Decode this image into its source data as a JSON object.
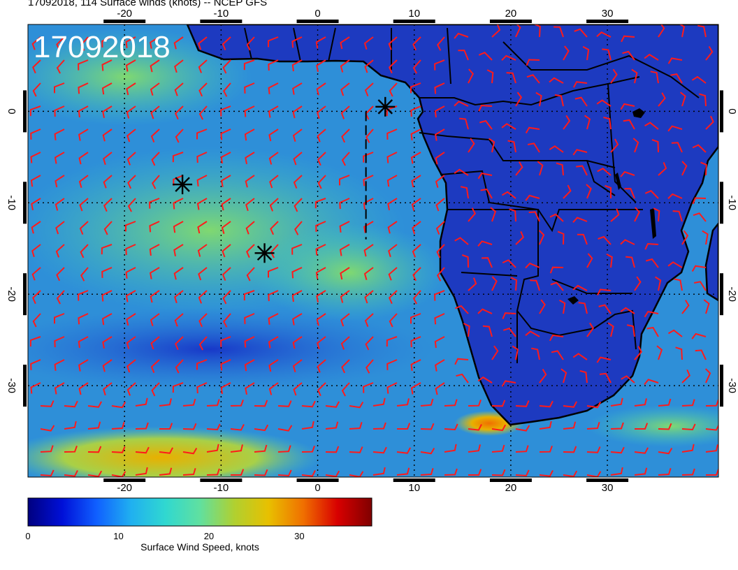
{
  "title": "17092018, 114 Surface winds (knots) -- NCEP GFS",
  "date_stamp": "17092018",
  "map": {
    "lon_range": [
      -30,
      41.5
    ],
    "lat_range": [
      -40,
      9.5
    ],
    "lon_ticks": [
      "-20",
      "-10",
      "0",
      "10",
      "20",
      "30"
    ],
    "lat_ticks": [
      "0",
      "-10",
      "-20",
      "-30"
    ],
    "grid_lons": [
      -20,
      -10,
      0,
      10,
      20,
      30
    ],
    "grid_lats": [
      0,
      -10,
      -20,
      -30
    ],
    "ocean_color": "#2e8fd8",
    "land_color": "#1d3ac0",
    "barb_color": "#ff1a1a",
    "storm_markers": [
      {
        "lon": -14,
        "lat": -8
      },
      {
        "lon": -5.5,
        "lat": -15.5
      },
      {
        "lon": 7,
        "lat": 0.5
      }
    ],
    "track_segment": {
      "from": [
        5,
        0
      ],
      "to": [
        5,
        -14
      ]
    }
  },
  "colorbar": {
    "label": "Surface Wind Speed, knots",
    "ticks": [
      "0",
      "10",
      "20",
      "30"
    ],
    "tick_values": [
      0,
      10,
      20,
      30
    ],
    "max": 38,
    "stops": [
      "#000080",
      "#0010d8",
      "#1060ff",
      "#20b0f0",
      "#30d8d0",
      "#60e0a0",
      "#b0d030",
      "#e8c000",
      "#f07000",
      "#d80000",
      "#800000"
    ]
  }
}
